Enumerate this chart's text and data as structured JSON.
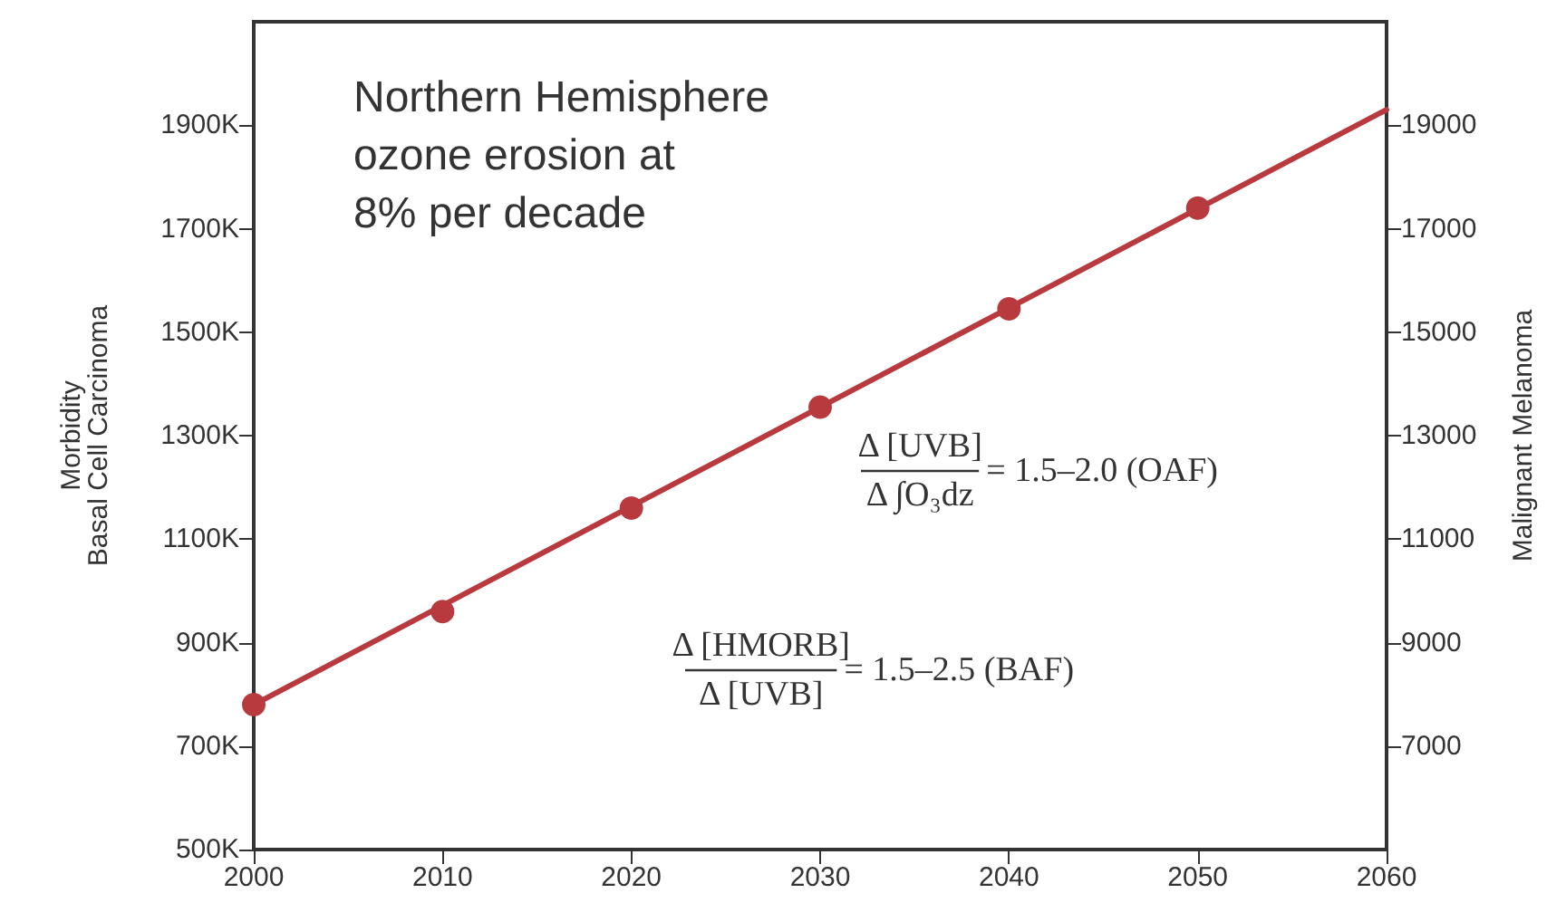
{
  "chart_data": {
    "type": "line",
    "title": "Northern Hemisphere\nozone erosion at\n8% per decade",
    "ylabel": "Morbidity\nBasal Cell Carcinoma",
    "y2label": "Malignant Melanoma",
    "annotations": [
      "Δ [UVB]",
      "Δ ∫O₃dz",
      "= 1.5–2.0 (OAF)",
      "Δ [HMORB]",
      "Δ [UVB]",
      "= 1.5–2.5 (BAF)"
    ],
    "series": [
      {
        "color": "#b83a3f",
        "marker": "none",
        "x": [
          2000,
          2060
        ],
        "values": [
          780,
          1930
        ]
      },
      {
        "type": "scatter",
        "color": "#b83a3f",
        "marker": "circle",
        "x": [
          2000,
          2010,
          2020,
          2030,
          2040,
          2050
        ],
        "values": [
          780,
          960,
          1160,
          1355,
          1545,
          1740
        ]
      }
    ],
    "xlim": [
      2000,
      2060
    ],
    "xticks": [
      2000,
      2010,
      2020,
      2030,
      2040,
      2050,
      2060
    ],
    "ylim": [
      500,
      2100
    ],
    "yticks": [
      {
        "value": 500,
        "label": "500K"
      },
      {
        "value": 700,
        "label": "700K"
      },
      {
        "value": 900,
        "label": "900K"
      },
      {
        "value": 1100,
        "label": "1100K"
      },
      {
        "value": 1300,
        "label": "1300K"
      },
      {
        "value": 1500,
        "label": "1500K"
      },
      {
        "value": 1700,
        "label": "1700K"
      },
      {
        "value": 1900,
        "label": "1900K"
      }
    ],
    "y2lim": [
      5000,
      21000
    ],
    "y2ticks": [
      7000,
      9000,
      11000,
      13000,
      15000,
      17000,
      19000
    ],
    "grid": false
  }
}
